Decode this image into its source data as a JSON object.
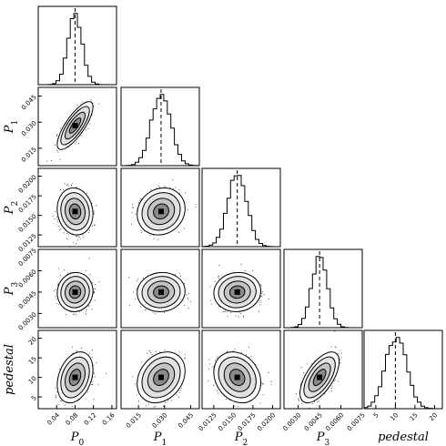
{
  "chart_data": {
    "type": "corner",
    "parameters": [
      {
        "key": "P0",
        "label_base": "P",
        "label_sub": "0",
        "mean": 0.08,
        "std": 0.0155,
        "range": [
          0.0,
          0.17
        ],
        "ticks": [
          "0.04",
          "0.08",
          "0.12",
          "0.16"
        ]
      },
      {
        "key": "P1",
        "label_base": "P",
        "label_sub": "1",
        "mean": 0.028,
        "std": 0.0055,
        "range": [
          0.005,
          0.05
        ],
        "ticks": [
          "0.015",
          "0.030",
          "0.045"
        ]
      },
      {
        "key": "P2",
        "label_base": "P",
        "label_sub": "2",
        "mean": 0.0155,
        "std": 0.0012,
        "range": [
          0.011,
          0.021
        ],
        "ticks": [
          "0.0125",
          "0.0150",
          "0.0175",
          "0.0200"
        ]
      },
      {
        "key": "P3",
        "label_base": "P",
        "label_sub": "3",
        "mean": 0.0045,
        "std": 0.00055,
        "range": [
          0.002,
          0.0075
        ],
        "ticks": [
          "0.0030",
          "0.0045",
          "0.0060",
          "0.0075"
        ]
      },
      {
        "key": "pedestal",
        "label_base": "pedestal",
        "label_sub": "",
        "mean": 10.0,
        "std": 2.6,
        "range": [
          2,
          22
        ],
        "ticks": [
          "5",
          "10",
          "15",
          "20"
        ]
      }
    ],
    "correlations": {
      "1-0": 0.78,
      "2-0": -0.1,
      "2-1": 0.12,
      "3-0": 0.05,
      "3-1": 0.05,
      "3-2": 0.05,
      "4-0": 0.3,
      "4-1": 0.25,
      "4-2": -0.2,
      "4-3": 0.62
    },
    "diagonal": "histogram with dashed median line",
    "off_diagonal": "2D density scatter with contours",
    "grid": false
  }
}
